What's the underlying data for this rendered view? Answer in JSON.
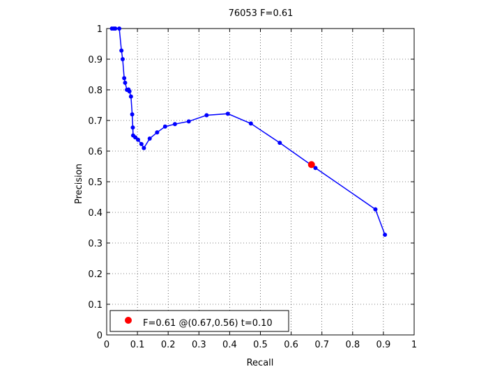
{
  "chart_data": {
    "type": "line",
    "title": "76053 F=0.61",
    "xlabel": "Recall",
    "ylabel": "Precision",
    "xlim": [
      0,
      1
    ],
    "ylim": [
      0,
      1
    ],
    "grid": true,
    "xticks": [
      0,
      0.1,
      0.2,
      0.3,
      0.4,
      0.5,
      0.6,
      0.7,
      0.8,
      0.9,
      1
    ],
    "yticks": [
      0,
      0.1,
      0.2,
      0.3,
      0.4,
      0.5,
      0.6,
      0.7,
      0.8,
      0.9,
      1
    ],
    "xtick_labels": [
      "0",
      "0.1",
      "0.2",
      "0.3",
      "0.4",
      "0.5",
      "0.6",
      "0.7",
      "0.8",
      "0.9",
      "1"
    ],
    "ytick_labels": [
      "0",
      "0.1",
      "0.2",
      "0.3",
      "0.4",
      "0.5",
      "0.6",
      "0.7",
      "0.8",
      "0.9",
      "1"
    ],
    "series": [
      {
        "color": "#0000ff",
        "x": [
          0.905,
          0.874,
          0.679,
          0.563,
          0.469,
          0.394,
          0.325,
          0.267,
          0.222,
          0.19,
          0.164,
          0.14,
          0.121,
          0.113,
          0.102,
          0.093,
          0.086,
          0.085,
          0.083,
          0.079,
          0.074,
          0.071,
          0.066,
          0.06,
          0.057,
          0.052,
          0.048,
          0.041,
          0.028,
          0.023,
          0.017
        ],
        "y": [
          0.327,
          0.41,
          0.545,
          0.627,
          0.69,
          0.722,
          0.717,
          0.697,
          0.688,
          0.68,
          0.661,
          0.641,
          0.61,
          0.623,
          0.637,
          0.645,
          0.651,
          0.677,
          0.72,
          0.778,
          0.795,
          0.801,
          0.8,
          0.823,
          0.838,
          0.9,
          0.928,
          1.0,
          1.0,
          1.0,
          1.0
        ]
      }
    ],
    "best_point": {
      "x": 0.666,
      "y": 0.556,
      "color": "#ff0000"
    },
    "legend": {
      "position": "bottom-left",
      "label": "F=0.61 @(0.67,0.56) t=0.10"
    }
  }
}
